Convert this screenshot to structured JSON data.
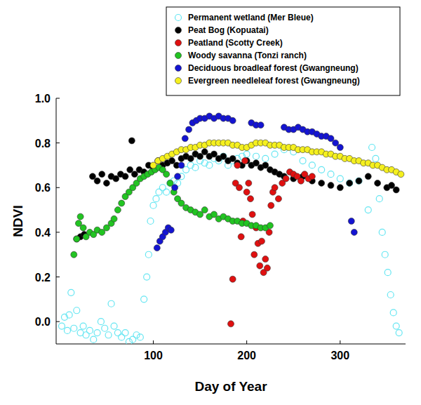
{
  "chart_data": {
    "type": "scatter",
    "x_label": "Day of Year",
    "y_label": "NDVI",
    "xlim": [
      -4,
      370
    ],
    "xticks": [
      100,
      200,
      300
    ],
    "ylim": [
      -0.1,
      1.0
    ],
    "yticks": [
      {
        "value": 0,
        "label": "0.0"
      },
      0.2,
      0.4,
      0.6,
      0.8,
      {
        "value": 1,
        "label": "1.0"
      }
    ],
    "legend": "upper right",
    "grid": false,
    "series": [
      {
        "name": "Permanent wetland (Mer Bleue)",
        "color": "#66e6f2",
        "marker": "open",
        "x": [
          2,
          5,
          8,
          10,
          12,
          15,
          18,
          22,
          25,
          28,
          32,
          36,
          40,
          44,
          48,
          52,
          55,
          58,
          62,
          66,
          70,
          74,
          78,
          82,
          86,
          90,
          93,
          95,
          97,
          100,
          103,
          106,
          110,
          114,
          118,
          122,
          126,
          130,
          135,
          140,
          145,
          150,
          155,
          160,
          165,
          170,
          175,
          180,
          185,
          190,
          195,
          200,
          210,
          220,
          230,
          240,
          250,
          260,
          270,
          280,
          290,
          300,
          310,
          320,
          330,
          334,
          338,
          342,
          345,
          348,
          351,
          354,
          357,
          360,
          363
        ],
        "values": [
          -0.02,
          0.02,
          -0.04,
          0.03,
          0.13,
          -0.03,
          0.05,
          -0.05,
          -0.02,
          -0.06,
          -0.04,
          -0.08,
          -0.05,
          0.0,
          -0.03,
          -0.06,
          0.08,
          -0.02,
          -0.05,
          -0.07,
          -0.05,
          -0.09,
          -0.08,
          -0.06,
          -0.07,
          0.1,
          0.2,
          0.3,
          0.45,
          0.52,
          0.55,
          0.58,
          0.6,
          0.58,
          0.62,
          0.63,
          0.62,
          0.65,
          0.68,
          0.7,
          0.69,
          0.72,
          0.71,
          0.7,
          0.73,
          0.72,
          0.74,
          0.7,
          0.72,
          0.73,
          0.74,
          0.75,
          0.74,
          0.73,
          0.75,
          0.77,
          0.76,
          0.72,
          0.7,
          0.68,
          0.66,
          0.64,
          0.62,
          0.63,
          0.5,
          0.78,
          0.73,
          0.55,
          0.4,
          0.3,
          0.22,
          0.12,
          0.04,
          -0.02,
          -0.05
        ]
      },
      {
        "name": "Peat Bog (Kopuatai)",
        "color": "#000000",
        "marker": "circle",
        "x": [
          18,
          22,
          26,
          35,
          40,
          45,
          50,
          55,
          60,
          65,
          70,
          75,
          77,
          80,
          85,
          90,
          95,
          100,
          105,
          110,
          115,
          120,
          125,
          130,
          135,
          140,
          145,
          150,
          155,
          160,
          165,
          170,
          175,
          180,
          185,
          190,
          195,
          200,
          205,
          210,
          215,
          220,
          225,
          230,
          235,
          240,
          250,
          260,
          270,
          280,
          290,
          300,
          310,
          320,
          330,
          340,
          350,
          355,
          360
        ],
        "values": [
          0.37,
          0.38,
          0.39,
          0.65,
          0.63,
          0.66,
          0.62,
          0.65,
          0.64,
          0.66,
          0.65,
          0.68,
          0.81,
          0.66,
          0.68,
          0.67,
          0.7,
          0.69,
          0.72,
          0.7,
          0.71,
          0.72,
          0.7,
          0.73,
          0.74,
          0.73,
          0.75,
          0.74,
          0.76,
          0.74,
          0.75,
          0.73,
          0.74,
          0.72,
          0.73,
          0.71,
          0.7,
          0.72,
          0.7,
          0.71,
          0.69,
          0.7,
          0.68,
          0.67,
          0.66,
          0.65,
          0.64,
          0.65,
          0.63,
          0.62,
          0.61,
          0.6,
          0.62,
          0.63,
          0.65,
          0.62,
          0.6,
          0.61,
          0.59
        ]
      },
      {
        "name": "Peatland (Scotty Creek)",
        "color": "#e01010",
        "marker": "circle",
        "x": [
          183,
          185,
          188,
          190,
          192,
          194,
          196,
          198,
          200,
          202,
          204,
          206,
          208,
          210,
          212,
          214,
          216,
          218,
          220,
          222,
          224,
          226,
          228,
          230,
          234,
          238,
          242,
          246,
          250,
          254,
          258,
          262,
          266,
          270
        ],
        "values": [
          -0.01,
          0.19,
          0.62,
          0.7,
          0.6,
          0.38,
          0.45,
          0.72,
          0.58,
          0.62,
          0.55,
          0.48,
          0.3,
          0.42,
          0.35,
          0.25,
          0.36,
          0.22,
          0.28,
          0.24,
          0.4,
          0.52,
          0.58,
          0.6,
          0.55,
          0.62,
          0.64,
          0.67,
          0.66,
          0.65,
          0.63,
          0.66,
          0.64,
          0.65
        ]
      },
      {
        "name": "Woody savanna (Tonzi ranch)",
        "color": "#22c422",
        "marker": "circle",
        "x": [
          15,
          18,
          20,
          22,
          25,
          28,
          32,
          36,
          40,
          45,
          50,
          55,
          58,
          62,
          66,
          70,
          74,
          78,
          82,
          86,
          90,
          94,
          98,
          102,
          106,
          110,
          114,
          118,
          122,
          126,
          130,
          135,
          140,
          145,
          150,
          155,
          160,
          165,
          170,
          175,
          180,
          185,
          190,
          195,
          200,
          205,
          210,
          215,
          220,
          225
        ],
        "values": [
          0.3,
          0.37,
          0.44,
          0.47,
          0.42,
          0.38,
          0.4,
          0.39,
          0.41,
          0.4,
          0.42,
          0.44,
          0.46,
          0.5,
          0.53,
          0.56,
          0.58,
          0.6,
          0.62,
          0.64,
          0.65,
          0.66,
          0.67,
          0.68,
          0.69,
          0.68,
          0.66,
          0.62,
          0.58,
          0.55,
          0.53,
          0.51,
          0.5,
          0.49,
          0.48,
          0.5,
          0.47,
          0.48,
          0.46,
          0.47,
          0.46,
          0.45,
          0.45,
          0.44,
          0.44,
          0.43,
          0.43,
          0.42,
          0.42,
          0.43
        ]
      },
      {
        "name": "Deciduous broadleaf forest (Gwangneung)",
        "color": "#1414d2",
        "marker": "circle",
        "x": [
          104,
          107,
          110,
          113,
          116,
          119,
          123,
          126,
          130,
          134,
          138,
          142,
          146,
          150,
          155,
          160,
          165,
          170,
          175,
          180,
          185,
          205,
          210,
          215,
          240,
          245,
          250,
          255,
          260,
          265,
          270,
          275,
          280,
          285,
          290,
          295,
          300,
          312,
          315
        ],
        "values": [
          0.33,
          0.36,
          0.38,
          0.4,
          0.42,
          0.41,
          0.6,
          0.65,
          0.7,
          0.82,
          0.86,
          0.89,
          0.9,
          0.91,
          0.91,
          0.92,
          0.91,
          0.92,
          0.91,
          0.91,
          0.9,
          0.89,
          0.88,
          0.88,
          0.87,
          0.86,
          0.86,
          0.87,
          0.86,
          0.85,
          0.85,
          0.84,
          0.83,
          0.83,
          0.82,
          0.8,
          0.78,
          0.45,
          0.4
        ]
      },
      {
        "name": "Evergreen needleleaf forest (Gwangneung)",
        "color": "#f5f01e",
        "marker": "circle",
        "x": [
          100,
          105,
          110,
          115,
          120,
          125,
          130,
          135,
          140,
          145,
          150,
          155,
          160,
          165,
          170,
          175,
          180,
          185,
          190,
          195,
          200,
          205,
          210,
          215,
          220,
          225,
          230,
          235,
          240,
          245,
          250,
          255,
          260,
          265,
          270,
          275,
          280,
          285,
          290,
          295,
          300,
          305,
          310,
          315,
          320,
          325,
          330,
          335,
          340,
          345,
          350,
          355,
          360,
          365
        ],
        "values": [
          0.7,
          0.72,
          0.73,
          0.74,
          0.75,
          0.76,
          0.77,
          0.77,
          0.78,
          0.78,
          0.79,
          0.79,
          0.8,
          0.8,
          0.8,
          0.8,
          0.8,
          0.79,
          0.79,
          0.78,
          0.78,
          0.79,
          0.8,
          0.8,
          0.8,
          0.79,
          0.79,
          0.79,
          0.78,
          0.78,
          0.78,
          0.77,
          0.77,
          0.77,
          0.76,
          0.76,
          0.76,
          0.75,
          0.75,
          0.74,
          0.74,
          0.73,
          0.73,
          0.72,
          0.72,
          0.71,
          0.71,
          0.7,
          0.7,
          0.69,
          0.68,
          0.68,
          0.67,
          0.66
        ]
      }
    ]
  }
}
